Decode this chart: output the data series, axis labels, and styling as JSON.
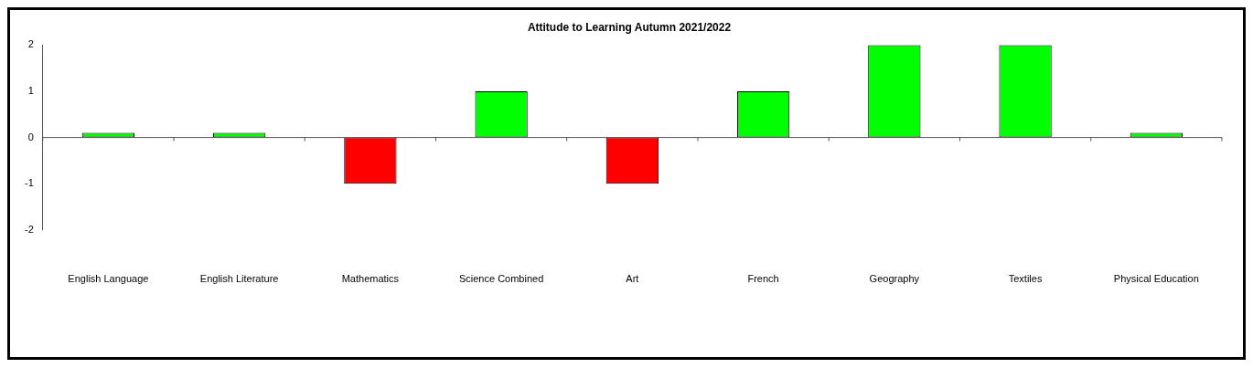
{
  "chart_data": {
    "type": "bar",
    "title": "Attitude to Learning Autumn 2021/2022",
    "categories": [
      "English Language",
      "English Literature",
      "Mathematics",
      "Science Combined",
      "Art",
      "French",
      "Geography",
      "Textiles",
      "Physical Education"
    ],
    "values": [
      0.1,
      0.1,
      -1,
      1,
      -1,
      1,
      2,
      2,
      0.1
    ],
    "colors": [
      "#00ff00",
      "#00ff00",
      "#ff0000",
      "#00ff00",
      "#ff0000",
      "#00ff00",
      "#00ff00",
      "#00ff00",
      "#00ff00"
    ],
    "ylim": [
      -2,
      2
    ],
    "yticks": [
      -2,
      -1,
      0,
      1,
      2
    ],
    "legend": false
  }
}
